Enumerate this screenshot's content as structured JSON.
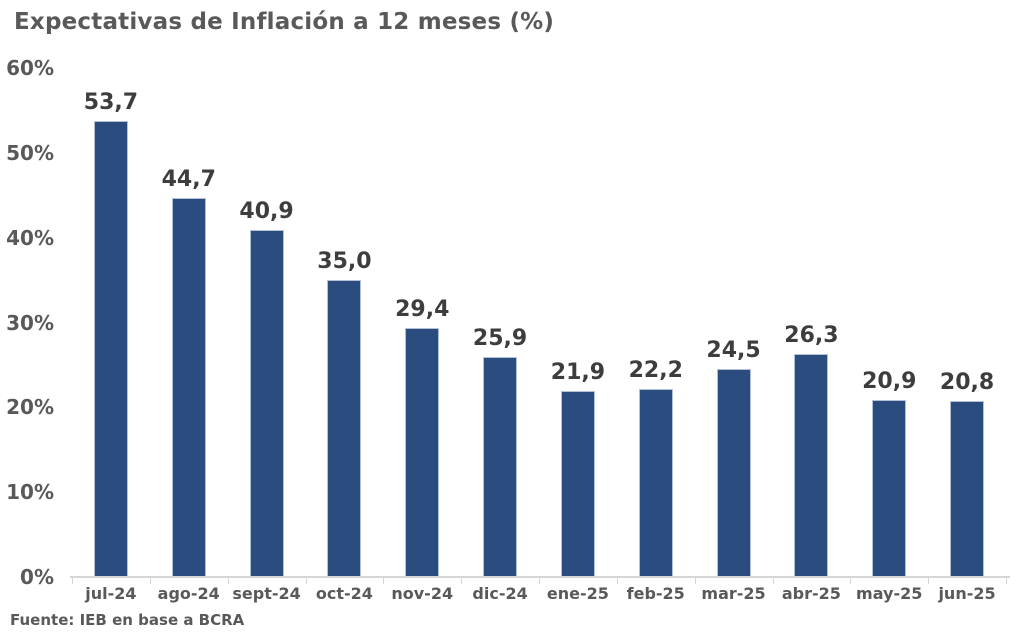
{
  "title": "Expectativas de Inflación a 12 meses (%)",
  "source": "Fuente: IEB en base a BCRA",
  "chart_data": {
    "type": "bar",
    "title": "Expectativas de Inflación a 12 meses (%)",
    "categories": [
      "jul-24",
      "ago-24",
      "sept-24",
      "oct-24",
      "nov-24",
      "dic-24",
      "ene-25",
      "feb-25",
      "mar-25",
      "abr-25",
      "may-25",
      "jun-25"
    ],
    "values": [
      53.7,
      44.7,
      40.9,
      35.0,
      29.4,
      25.9,
      21.9,
      22.2,
      24.5,
      26.3,
      20.9,
      20.8
    ],
    "value_labels": [
      "53,7",
      "44,7",
      "40,9",
      "35,0",
      "29,4",
      "25,9",
      "21,9",
      "22,2",
      "24,5",
      "26,3",
      "20,9",
      "20,8"
    ],
    "xlabel": "",
    "ylabel": "",
    "ylim": [
      0,
      60
    ],
    "y_tick_values": [
      0,
      10,
      20,
      30,
      40,
      50,
      60
    ],
    "y_tick_labels": [
      "0%",
      "10%",
      "20%",
      "30%",
      "40%",
      "50%",
      "60%"
    ],
    "grid": false,
    "legend": false,
    "bar_color": "#2B4C7E",
    "title_color": "#595959",
    "value_label_color": "#3d3d3d",
    "axis_label_color": "#595959",
    "axis_line_color": "#d6d6d6",
    "source": "Fuente: IEB en base a BCRA"
  }
}
